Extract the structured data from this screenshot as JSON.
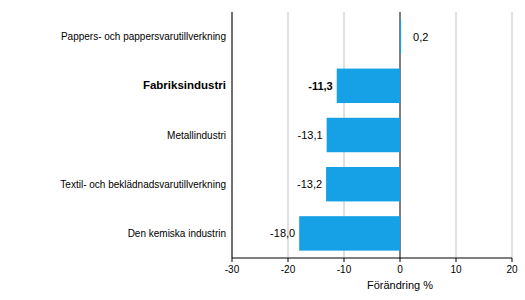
{
  "chart_data": {
    "type": "bar",
    "orientation": "horizontal",
    "categories": [
      "Pappers- och pappersvarutillverkning",
      "Fabriksindustri",
      "Metallindustri",
      "Textil- och beklädnadsvarutillverkning",
      "Den kemiska industrin"
    ],
    "values": [
      0.2,
      -11.3,
      -13.1,
      -13.2,
      -18.0
    ],
    "value_labels": [
      "0,2",
      "-11,3",
      "-13,1",
      "-13,2",
      "-18,0"
    ],
    "data_labels": true,
    "color": "#16a0e6",
    "xlabel": "Förändring %",
    "xlim": [
      -30,
      20
    ],
    "xticks": [
      -30,
      -20,
      -10,
      0,
      10,
      20
    ],
    "grid": true
  }
}
